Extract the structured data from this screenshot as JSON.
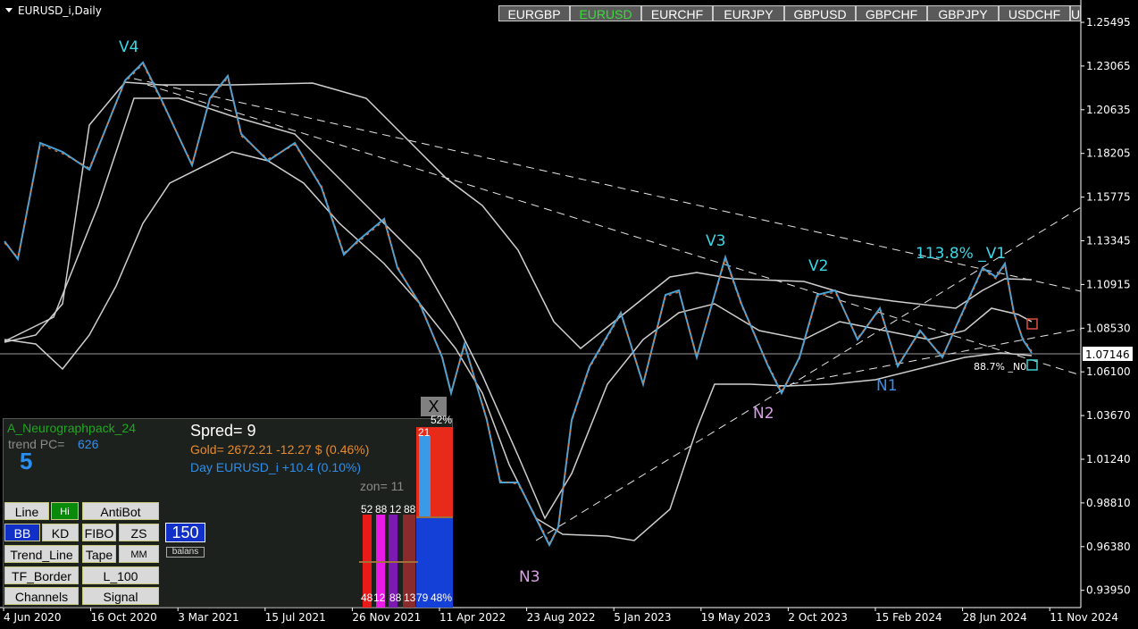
{
  "window": {
    "title": "EURUSD_i,Daily"
  },
  "tabs": [
    "EURGBP",
    "EURUSD",
    "EURCHF",
    "EURJPY",
    "GBPUSD",
    "GBPCHF",
    "GBPJPY",
    "USDCHF",
    "U"
  ],
  "price_axis": [
    "1.25495",
    "1.23065",
    "1.20635",
    "1.18205",
    "1.15775",
    "1.13345",
    "1.10915",
    "1.08530",
    "1.06100",
    "1.03670",
    "1.01240",
    "0.98810",
    "0.96380",
    "0.93950"
  ],
  "current_price": "1.07146",
  "time_axis": [
    "4 Jun 2020",
    "16 Oct 2020",
    "3 Mar 2021",
    "15 Jul 2021",
    "26 Nov 2021",
    "11 Apr 2022",
    "23 Aug 2022",
    "5 Jan 2023",
    "19 May 2023",
    "2 Oct 2023",
    "15 Feb 2024",
    "28 Jun 2024",
    "11 Nov 2024"
  ],
  "annotations": [
    "V4",
    "V3",
    "V2",
    "113.8% _V1",
    "N1",
    "N2",
    "N3",
    "88.7% _N0"
  ],
  "panel": {
    "close": "X",
    "name": "A_Neurographpack_24",
    "trend_label": "trend PC=",
    "trend_value": "626",
    "trend_digit": "5",
    "spread": "Spred= 9",
    "gold": "Gold= 2672.21 -12.27 $ (0.46%)",
    "day": "Day EURUSD_i   +10.4 (0.10%)",
    "zone": "zon= 11",
    "top_percent": "52%",
    "top_count": "21",
    "bars_top": [
      "52",
      "88",
      "12",
      "88"
    ],
    "bars_bottom": [
      "48",
      "12",
      "88",
      "13",
      "79",
      "48%"
    ],
    "buttons": [
      "Line",
      "Hi",
      "AntiBot",
      "BB",
      "KD",
      "FIBO",
      "ZS",
      "Trend_Line",
      "Tape",
      "MM",
      "TF_Border",
      "L_100",
      "Channels",
      "Signal"
    ],
    "lot": "150",
    "balance": "balans"
  }
}
